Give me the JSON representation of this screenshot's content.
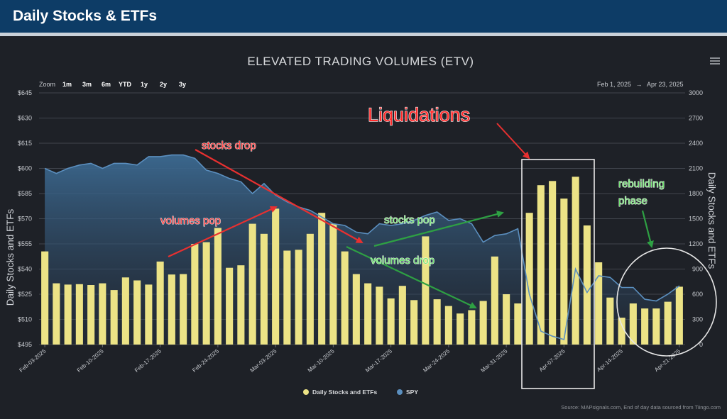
{
  "header": {
    "title": "Daily Stocks & ETFs"
  },
  "colors": {
    "header_bg": "#0d3c66",
    "panel_bg": "#1e2127",
    "volume_bar": "#ece386",
    "spy_line": "#5b8fbf",
    "spy_fill": "#3c6a92",
    "arrow_red": "#e83030",
    "arrow_green": "#2ea043",
    "label_red": "#ff3a3a",
    "label_green": "#6ee36e"
  },
  "zoom": {
    "label": "Zoom",
    "options": [
      "1m",
      "3m",
      "6m",
      "YTD",
      "1y",
      "2y",
      "3y"
    ]
  },
  "date_range": {
    "from": "Feb 1, 2025",
    "arrow": "→",
    "to": "Apr 23, 2025"
  },
  "menu_icon": "hamburger-menu-icon",
  "chart_data": {
    "type": "bar",
    "title": "ELEVATED TRADING VOLUMES (ETV)",
    "ylabel_left": "Daily Stocks and ETFs",
    "ylabel_right": "Daily Stocks and ETFs",
    "yticks_left": [
      "$645",
      "$630",
      "$615",
      "$600",
      "$585",
      "$570",
      "$555",
      "$540",
      "$525",
      "$510",
      "$495"
    ],
    "yticks_right": [
      "3000",
      "2700",
      "2400",
      "2100",
      "1800",
      "1500",
      "1200",
      "900",
      "600",
      "300",
      "0"
    ],
    "ylim_left": [
      495,
      645
    ],
    "ylim_right": [
      0,
      3000
    ],
    "xticks": [
      "Feb-03-2025",
      "Feb-10-2025",
      "Feb-17-2025",
      "Feb-24-2025",
      "Mar-03-2025",
      "Mar-10-2025",
      "Mar-17-2025",
      "Mar-24-2025",
      "Mar-31-2025",
      "Apr-07-2025",
      "Apr-14-2025",
      "Apr-21-2025"
    ],
    "series": [
      {
        "name": "Daily Stocks and ETFs",
        "type": "bar",
        "axis": "right",
        "values": [
          1110,
          730,
          715,
          720,
          710,
          730,
          650,
          800,
          765,
          715,
          990,
          835,
          840,
          1200,
          1220,
          1390,
          915,
          945,
          1440,
          1320,
          1620,
          1120,
          1130,
          1320,
          1570,
          1440,
          1110,
          840,
          730,
          690,
          550,
          700,
          530,
          1290,
          540,
          460,
          370,
          410,
          520,
          1050,
          600,
          490,
          1570,
          1900,
          1950,
          1740,
          2000,
          1420,
          980,
          560,
          320,
          490,
          430,
          430,
          510,
          690
        ]
      },
      {
        "name": "SPY",
        "type": "line",
        "axis": "left",
        "values": [
          600,
          597,
          600,
          602,
          603,
          600,
          603,
          603,
          602,
          607,
          607,
          608,
          608,
          606,
          599,
          597,
          594,
          592,
          585,
          591,
          584,
          580,
          577,
          575,
          571,
          567,
          566,
          562,
          561,
          567,
          566,
          567,
          569,
          572,
          574,
          569,
          570,
          567,
          556,
          560,
          561,
          564,
          525,
          503,
          500,
          498,
          540,
          526,
          536,
          535,
          529,
          529,
          522,
          521,
          525,
          530
        ]
      }
    ],
    "legend": {
      "position": "bottom-center",
      "entries": [
        "Daily Stocks and ETFs",
        "SPY"
      ]
    },
    "annotations": {
      "liquidations": "Liquidations",
      "stocks_drop": "stocks drop",
      "volumes_pop": "volumes pop",
      "stocks_pop": "stocks pop",
      "volumes_drop": "volumes drop",
      "rebuilding_line1": "rebuilding",
      "rebuilding_line2": "phase"
    },
    "grid": true,
    "source": "Source: MAPsignals.com, End of day data sourced from Tiingo.com"
  }
}
